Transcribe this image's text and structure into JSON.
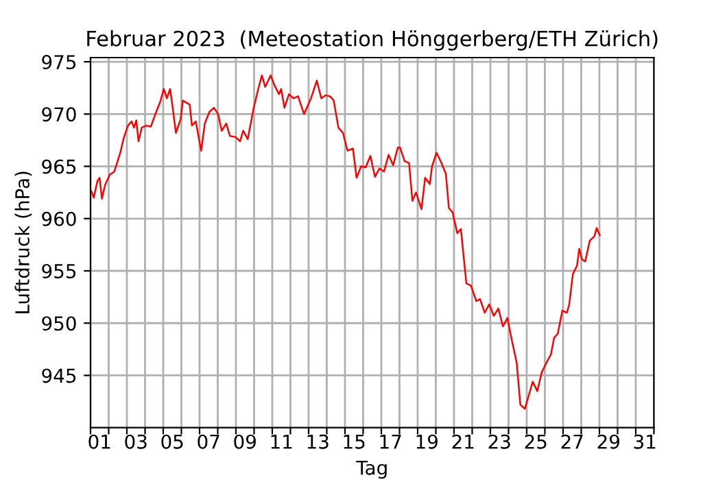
{
  "chart_data": {
    "type": "line",
    "title": "Februar 2023  (Meteostation Hönggerberg/ETH Zürich)",
    "xlabel": "Tag",
    "ylabel": "Luftdruck (hPa)",
    "xlim": [
      1,
      32
    ],
    "ylim": [
      940,
      975.4
    ],
    "xticks": [
      {
        "value": 1,
        "label": null
      },
      {
        "value": 2,
        "label": null
      },
      {
        "value": 3,
        "label": null
      },
      {
        "value": 4,
        "label": null
      },
      {
        "value": 5,
        "label": null
      },
      {
        "value": 6,
        "label": null
      },
      {
        "value": 7,
        "label": null
      },
      {
        "value": 8,
        "label": null
      },
      {
        "value": 9,
        "label": null
      },
      {
        "value": 10,
        "label": null
      },
      {
        "value": 11,
        "label": null
      },
      {
        "value": 12,
        "label": null
      },
      {
        "value": 13,
        "label": null
      },
      {
        "value": 14,
        "label": null
      },
      {
        "value": 15,
        "label": null
      },
      {
        "value": 16,
        "label": null
      },
      {
        "value": 17,
        "label": null
      },
      {
        "value": 18,
        "label": null
      },
      {
        "value": 19,
        "label": null
      },
      {
        "value": 20,
        "label": null
      },
      {
        "value": 21,
        "label": null
      },
      {
        "value": 22,
        "label": null
      },
      {
        "value": 23,
        "label": null
      },
      {
        "value": 24,
        "label": null
      },
      {
        "value": 25,
        "label": null
      },
      {
        "value": 26,
        "label": null
      },
      {
        "value": 27,
        "label": null
      },
      {
        "value": 28,
        "label": null
      },
      {
        "value": 29,
        "label": null
      },
      {
        "value": 30,
        "label": null
      },
      {
        "value": 31,
        "label": null
      },
      {
        "value": 32,
        "label": null
      },
      {
        "value": 1.5,
        "label": "01"
      },
      {
        "value": 3.5,
        "label": "03"
      },
      {
        "value": 5.5,
        "label": "05"
      },
      {
        "value": 7.5,
        "label": "07"
      },
      {
        "value": 9.5,
        "label": "09"
      },
      {
        "value": 11.5,
        "label": "11"
      },
      {
        "value": 13.5,
        "label": "13"
      },
      {
        "value": 15.5,
        "label": "15"
      },
      {
        "value": 17.5,
        "label": "17"
      },
      {
        "value": 19.5,
        "label": "19"
      },
      {
        "value": 21.5,
        "label": "21"
      },
      {
        "value": 23.5,
        "label": "23"
      },
      {
        "value": 25.5,
        "label": "25"
      },
      {
        "value": 27.5,
        "label": "27"
      },
      {
        "value": 29.5,
        "label": "29"
      },
      {
        "value": 31.5,
        "label": "31"
      }
    ],
    "yticks": [
      945,
      950,
      955,
      960,
      965,
      970,
      975
    ],
    "grid": true,
    "legend": false,
    "marker": "none",
    "line_style": "solid",
    "series": [
      {
        "color": "#ff0000",
        "x": [
          1.05,
          1.18,
          1.38,
          1.5,
          1.63,
          1.8,
          2.06,
          2.31,
          2.51,
          2.64,
          2.81,
          3.06,
          3.26,
          3.39,
          3.52,
          3.64,
          3.82,
          4.07,
          4.32,
          4.57,
          4.82,
          5.03,
          5.2,
          5.38,
          5.5,
          5.7,
          5.96,
          6.08,
          6.46,
          6.58,
          6.79,
          7.09,
          7.29,
          7.54,
          7.79,
          8.02,
          8.22,
          8.47,
          8.67,
          8.98,
          9.23,
          9.4,
          9.65,
          9.98,
          10.23,
          10.43,
          10.61,
          10.91,
          11.11,
          11.37,
          11.49,
          11.67,
          11.92,
          12.17,
          12.42,
          12.75,
          13.13,
          13.45,
          13.7,
          13.93,
          14.18,
          14.38,
          14.64,
          14.89,
          15.14,
          15.44,
          15.64,
          15.89,
          16.14,
          16.4,
          16.65,
          16.9,
          17.15,
          17.4,
          17.65,
          17.91,
          18.03,
          18.28,
          18.53,
          18.71,
          18.91,
          19.21,
          19.41,
          19.67,
          19.79,
          20.04,
          20.29,
          20.55,
          20.72,
          20.92,
          21.18,
          21.38,
          21.68,
          21.93,
          22.23,
          22.43,
          22.69,
          22.94,
          23.19,
          23.44,
          23.69,
          23.94,
          24.19,
          24.45,
          24.65,
          24.9,
          25.08,
          25.33,
          25.58,
          25.83,
          26.08,
          26.33,
          26.51,
          26.71,
          26.96,
          27.21,
          27.34,
          27.54,
          27.77,
          27.89,
          28.04,
          28.22,
          28.47,
          28.72,
          28.85,
          29.02
        ],
        "values": [
          962.6,
          962.0,
          963.6,
          963.9,
          961.9,
          963.2,
          964.2,
          964.5,
          965.6,
          966.3,
          967.6,
          968.9,
          969.3,
          968.7,
          969.4,
          967.4,
          968.7,
          968.9,
          968.8,
          970.0,
          971.1,
          972.4,
          971.5,
          972.4,
          970.9,
          968.2,
          969.5,
          971.3,
          970.9,
          968.9,
          969.3,
          966.5,
          969.1,
          970.2,
          970.6,
          970.0,
          968.4,
          969.1,
          967.9,
          967.8,
          967.4,
          968.4,
          967.6,
          970.6,
          972.4,
          973.7,
          972.6,
          973.7,
          972.8,
          971.9,
          972.4,
          970.6,
          971.9,
          971.5,
          971.7,
          970.0,
          971.5,
          973.2,
          971.5,
          971.8,
          971.7,
          971.3,
          968.7,
          968.2,
          966.5,
          966.7,
          963.9,
          965.0,
          964.9,
          966.0,
          964.0,
          964.8,
          964.5,
          966.1,
          965.1,
          966.8,
          966.8,
          965.5,
          965.3,
          961.7,
          962.5,
          960.9,
          963.9,
          963.3,
          965.0,
          966.3,
          965.4,
          964.3,
          961.0,
          960.6,
          958.6,
          959.0,
          953.8,
          953.6,
          952.1,
          952.3,
          951.0,
          951.8,
          950.7,
          951.4,
          949.7,
          950.5,
          948.3,
          946.2,
          942.2,
          941.8,
          942.9,
          944.4,
          943.5,
          945.3,
          946.2,
          947.0,
          948.6,
          949.0,
          951.2,
          951.0,
          951.8,
          954.7,
          955.5,
          957.1,
          956.1,
          955.9,
          957.9,
          958.3,
          959.1,
          958.4
        ]
      }
    ]
  }
}
